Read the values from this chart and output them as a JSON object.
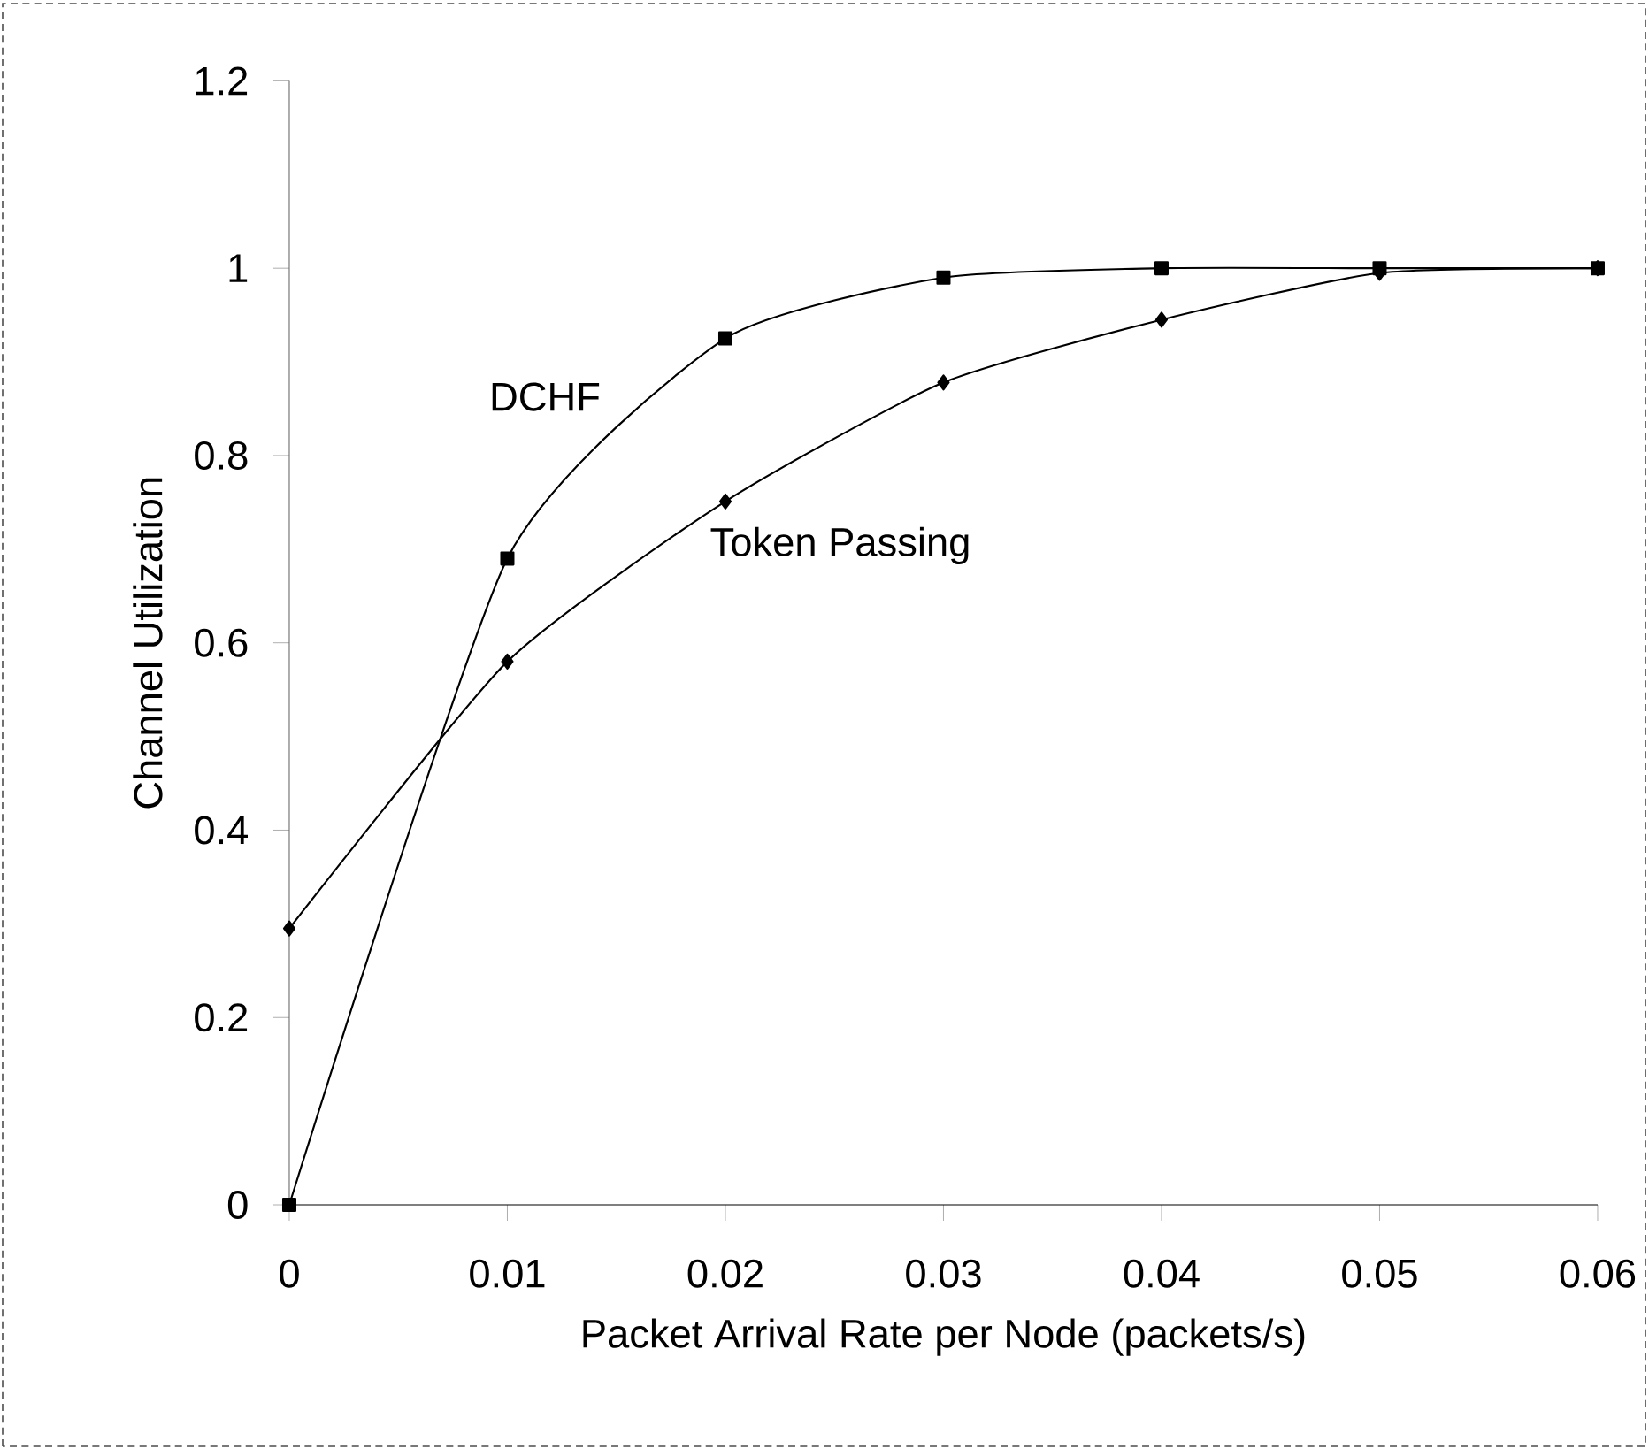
{
  "chart_data": {
    "type": "line",
    "xlabel": "Packet Arrival Rate per Node (packets/s)",
    "ylabel": "Channel Utilization",
    "x": [
      0,
      0.01,
      0.02,
      0.03,
      0.04,
      0.05,
      0.06
    ],
    "series": [
      {
        "name": "DCHF",
        "color": "#000000",
        "marker": "square",
        "values": [
          0,
          0.69,
          0.925,
          0.99,
          1,
          1,
          1
        ]
      },
      {
        "name": "Token Passing",
        "color": "#000000",
        "marker": "diamond",
        "values": [
          0.295,
          0.58,
          0.751,
          0.878,
          0.945,
          0.995,
          1
        ]
      }
    ],
    "xlim": [
      0,
      0.06
    ],
    "xticks": [
      0,
      0.01,
      0.02,
      0.03,
      0.04,
      0.05,
      0.06
    ],
    "ylim": [
      0,
      1.2
    ],
    "yticks": [
      0,
      0.2,
      0.4,
      0.6,
      0.8,
      1,
      1.2
    ],
    "grid": false,
    "line_style": "solid"
  }
}
